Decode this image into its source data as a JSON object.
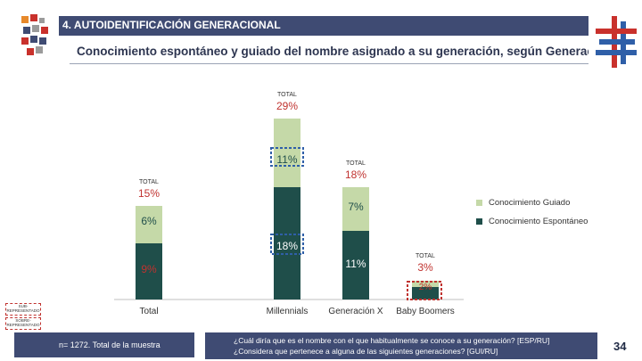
{
  "header": {
    "section_title": "4. AUTOIDENTIFICACIÓN GENERACIONAL",
    "subtitle": "Conocimiento espontáneo y guiado del nombre asignado a su generación, según Generación"
  },
  "colors": {
    "guided": "#c5d9a8",
    "spontaneous": "#1f4e4a",
    "navy": "#3f4b73",
    "highlight_blue": "#2f5fa8",
    "highlight_red": "#c0322f"
  },
  "chart_data": {
    "type": "bar",
    "stacked": true,
    "categories": [
      "Total",
      "Millennials",
      "Generación X",
      "Baby Boomers"
    ],
    "series": [
      {
        "name": "Conocimiento Espontáneo",
        "values": [
          9,
          18,
          11,
          2
        ],
        "labels": [
          "9%",
          "18%",
          "11%",
          "2%"
        ]
      },
      {
        "name": "Conocimiento Guiado",
        "values": [
          6,
          11,
          7,
          1
        ],
        "labels": [
          "6%",
          "11%",
          "7%",
          "1%"
        ]
      }
    ],
    "totals": [
      {
        "caption": "TOTAL",
        "value": "15%"
      },
      {
        "caption": "TOTAL",
        "value": "29%"
      },
      {
        "caption": "TOTAL",
        "value": "18%"
      },
      {
        "caption": "TOTAL",
        "value": "3%"
      }
    ],
    "legend": [
      "Conocimiento Guiado",
      "Conocimiento Espontáneo"
    ],
    "legend_position": "right",
    "ylim": [
      0,
      30
    ]
  },
  "side_notes": {
    "sub": "SUB-REPRESENTADO",
    "sobre": "SOBRE-REPRESENTADO"
  },
  "footer": {
    "sample_note": "n= 1272. Total de la muestra",
    "question_line1": "¿Cuál diría que es el nombre con el que habitualmente se conoce a su generación? [ESP/RU]",
    "question_line2": "¿Considera que pertenece a alguna de las siguientes generaciones? [GUI/RU]",
    "page_number": "34"
  }
}
